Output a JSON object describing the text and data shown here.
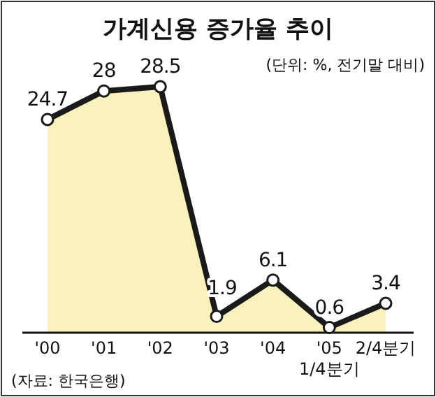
{
  "chart_data": {
    "type": "area",
    "title": "가계신용 증가율 추이",
    "subtitle": "(단위: %, 전기말 대비)",
    "categories": [
      "'00",
      "'01",
      "'02",
      "'03",
      "'04",
      "'05 1/4분기",
      "2/4분기"
    ],
    "values": [
      24.7,
      28,
      28.5,
      1.9,
      6.1,
      0.6,
      3.4
    ],
    "color": "#fbf1bd",
    "marker": "circle",
    "data_labels": true,
    "annotations": [
      "(자료: 한국은행)"
    ]
  }
}
